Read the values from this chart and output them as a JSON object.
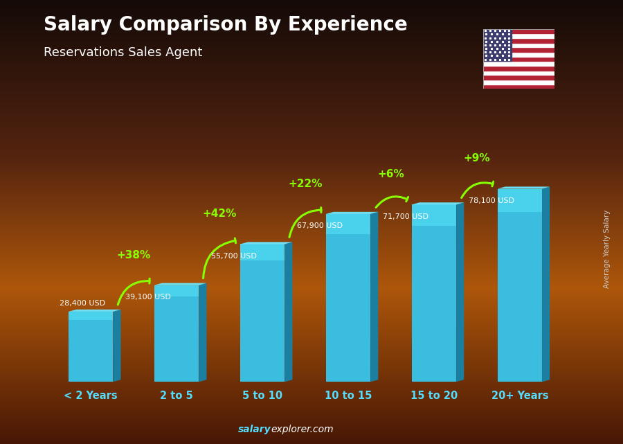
{
  "categories": [
    "< 2 Years",
    "2 to 5",
    "5 to 10",
    "10 to 15",
    "15 to 20",
    "20+ Years"
  ],
  "values": [
    28400,
    39100,
    55700,
    67900,
    71700,
    78100
  ],
  "value_labels": [
    "28,400 USD",
    "39,100 USD",
    "55,700 USD",
    "67,900 USD",
    "71,700 USD",
    "78,100 USD"
  ],
  "pct_changes": [
    null,
    "+38%",
    "+42%",
    "+22%",
    "+6%",
    "+9%"
  ],
  "bar_front_color": "#3bbde0",
  "bar_side_color": "#1a7fa0",
  "bar_top_color": "#6de0f5",
  "title": "Salary Comparison By Experience",
  "subtitle": "Reservations Sales Agent",
  "ylabel": "Average Yearly Salary",
  "arrow_color": "#88ff00",
  "pct_color": "#88ff00",
  "value_color": "#ffffff",
  "label_color": "#55ddff",
  "title_color": "#ffffff",
  "subtitle_color": "#ffffff",
  "footer_salary_color": "#55ddff",
  "footer_explorer_color": "#ffffff"
}
